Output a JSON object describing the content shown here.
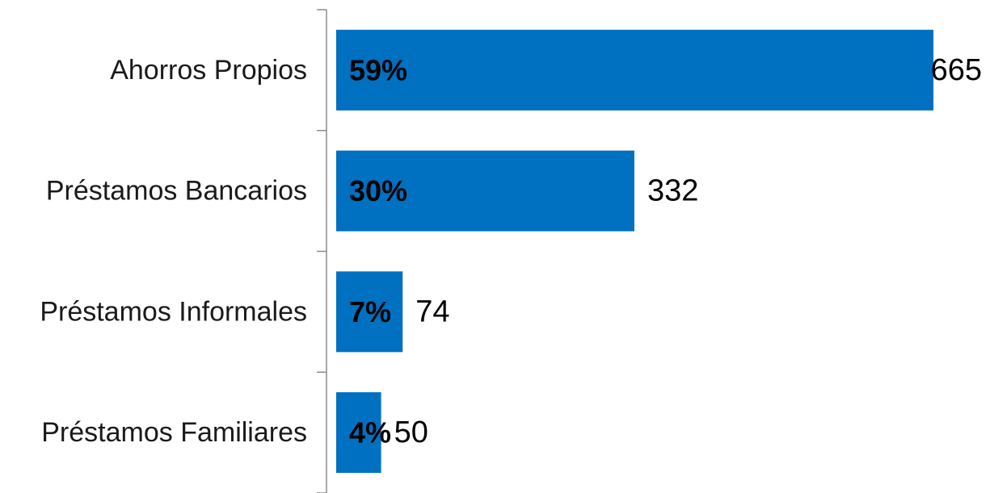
{
  "chart_data": {
    "type": "bar",
    "orientation": "horizontal",
    "title": "",
    "xlabel": "",
    "ylabel": "",
    "categories": [
      "Ahorros Propios",
      "Préstamos Bancarios",
      "Préstamos Informales",
      "Préstamos Familiares"
    ],
    "values": [
      665,
      332,
      74,
      50
    ],
    "value_labels": [
      "665",
      "332",
      "74",
      "50"
    ],
    "percent_labels": [
      "59%",
      "30%",
      "7%",
      "4%"
    ],
    "xlim": [
      0,
      665
    ],
    "grid": false,
    "legend": "none",
    "colors": {
      "bar": "#0070C0",
      "axis": "#8c8c8c",
      "text": "#1a1a1a"
    }
  }
}
